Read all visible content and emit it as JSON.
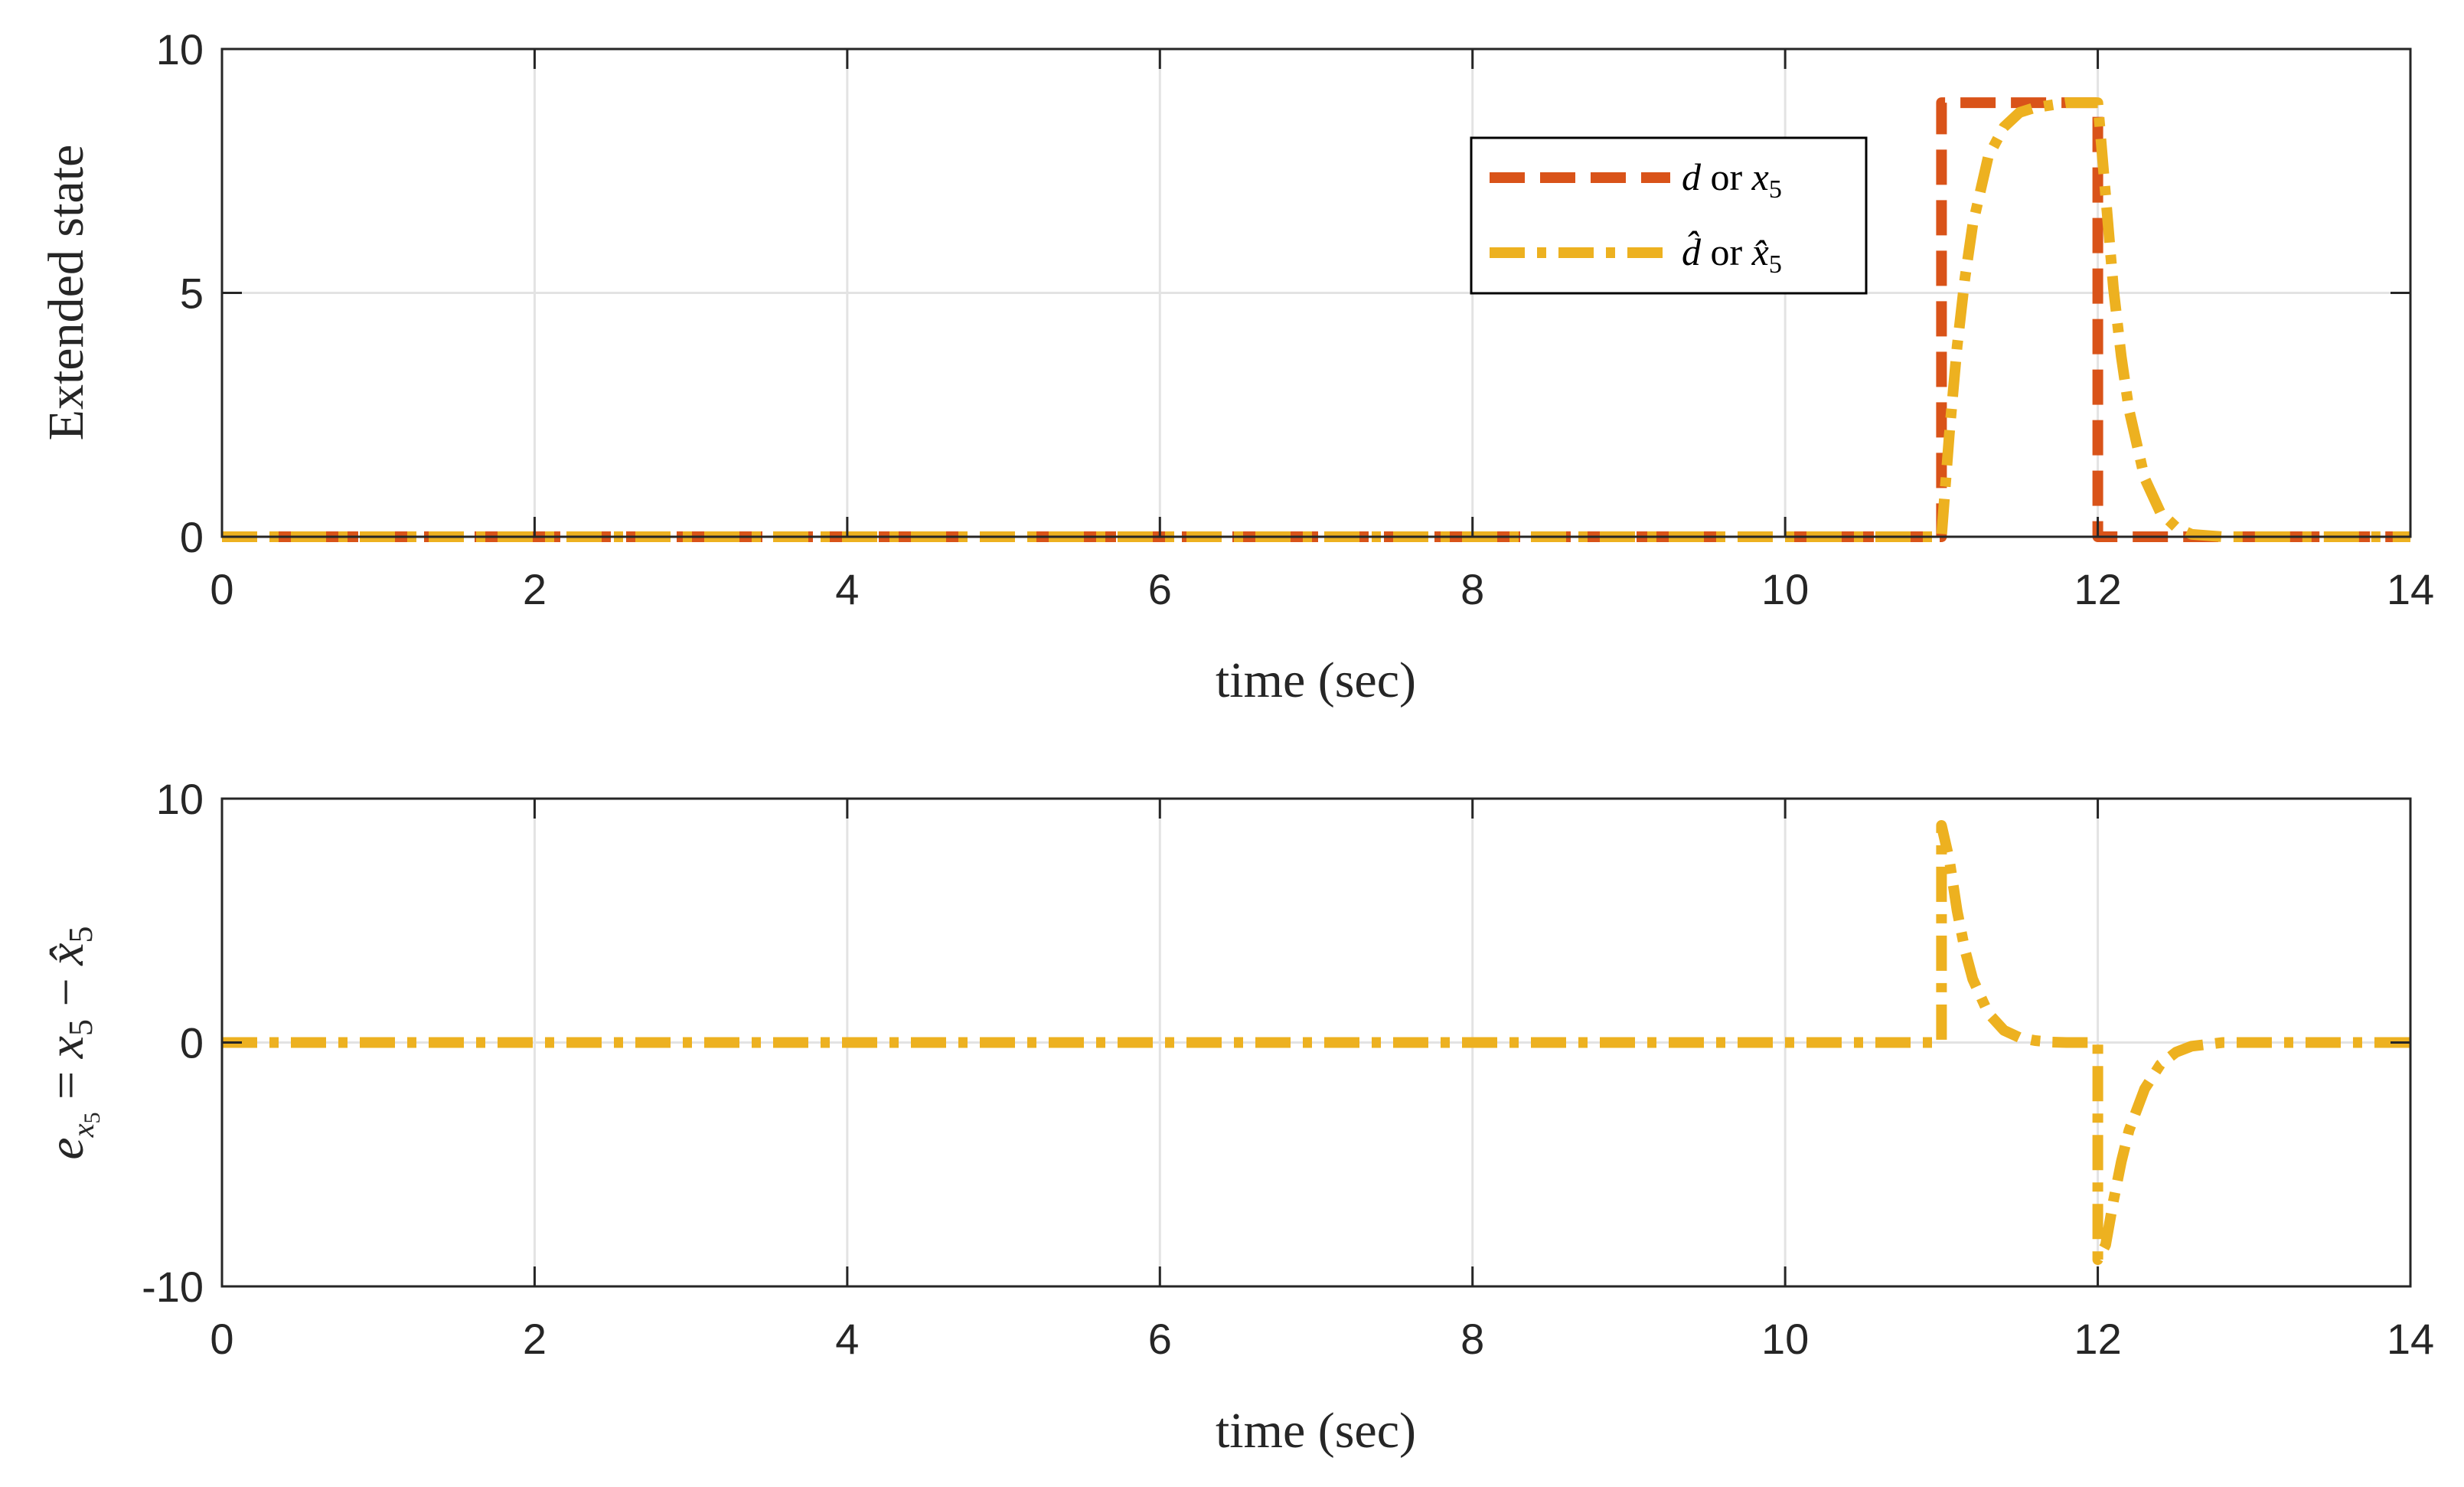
{
  "chart_data": [
    {
      "type": "line",
      "xlabel": "time (sec)",
      "ylabel": "Extended state",
      "xlim": [
        0,
        14
      ],
      "ylim": [
        0,
        10
      ],
      "xticks": [
        0,
        2,
        4,
        6,
        8,
        10,
        12,
        14
      ],
      "yticks": [
        0,
        5,
        10
      ],
      "xtick_labels": [
        "0",
        "2",
        "4",
        "6",
        "8",
        "10",
        "12",
        "14"
      ],
      "ytick_labels": [
        "0",
        "5",
        "10"
      ],
      "grid": true,
      "legend": "top-right",
      "series": [
        {
          "name": "d or x5",
          "color": "#D95319",
          "style": "dashed",
          "x": [
            0,
            11.0,
            11.0,
            12.0,
            12.0,
            14
          ],
          "y": [
            0,
            0,
            8.9,
            8.9,
            0,
            0
          ]
        },
        {
          "name": "d̂ or x̂5",
          "color": "#EDB120",
          "style": "dash-dot",
          "x": [
            0,
            11.0,
            11.05,
            11.1,
            11.15,
            11.2,
            11.3,
            11.4,
            11.5,
            11.6,
            11.7,
            11.8,
            11.9,
            12.0,
            12.05,
            12.1,
            12.15,
            12.2,
            12.3,
            12.4,
            12.5,
            12.6,
            12.8,
            14
          ],
          "y": [
            0,
            0,
            2.1,
            3.9,
            5.3,
            6.4,
            7.8,
            8.4,
            8.7,
            8.8,
            8.85,
            8.9,
            8.9,
            8.9,
            7.0,
            5.1,
            3.7,
            2.6,
            1.2,
            0.5,
            0.2,
            0.05,
            0,
            0
          ]
        }
      ]
    },
    {
      "type": "line",
      "xlabel": "time (sec)",
      "ylabel": "e_x5 = x5 − x̂5",
      "xlim": [
        0,
        14
      ],
      "ylim": [
        -10,
        10
      ],
      "xticks": [
        0,
        2,
        4,
        6,
        8,
        10,
        12,
        14
      ],
      "yticks": [
        -10,
        0,
        10
      ],
      "xtick_labels": [
        "0",
        "2",
        "4",
        "6",
        "8",
        "10",
        "12",
        "14"
      ],
      "ytick_labels": [
        "-10",
        "0",
        "10"
      ],
      "grid": true,
      "series": [
        {
          "color": "#EDB120",
          "style": "dash-dot",
          "x": [
            0,
            11.0,
            11.0,
            11.05,
            11.1,
            11.15,
            11.2,
            11.3,
            11.4,
            11.5,
            11.6,
            11.7,
            11.8,
            12.0,
            12.0,
            12.05,
            12.1,
            12.15,
            12.2,
            12.3,
            12.4,
            12.5,
            12.6,
            12.8,
            14
          ],
          "y": [
            0,
            0,
            8.9,
            7.5,
            5.4,
            3.8,
            2.6,
            1.2,
            0.5,
            0.2,
            0.08,
            0.02,
            0,
            0,
            -8.9,
            -8.3,
            -6.5,
            -4.9,
            -3.6,
            -1.9,
            -0.9,
            -0.4,
            -0.15,
            0,
            0
          ]
        }
      ]
    }
  ],
  "legend": {
    "entry1_sym_a": "d",
    "entry1_or": "or",
    "entry1_sym_b": "x",
    "entry1_sub": "5",
    "entry2_sym_a": "d̂",
    "entry2_or": "or",
    "entry2_sym_b": "x̂",
    "entry2_sub": "5"
  },
  "ylabel2": {
    "e": "e",
    "sub_x": "x",
    "sub_5": "5",
    "eq": " = ",
    "x": "x",
    "x_sub": "5",
    "minus": " − ",
    "xhat": "x̂",
    "xhat_sub": "5"
  }
}
